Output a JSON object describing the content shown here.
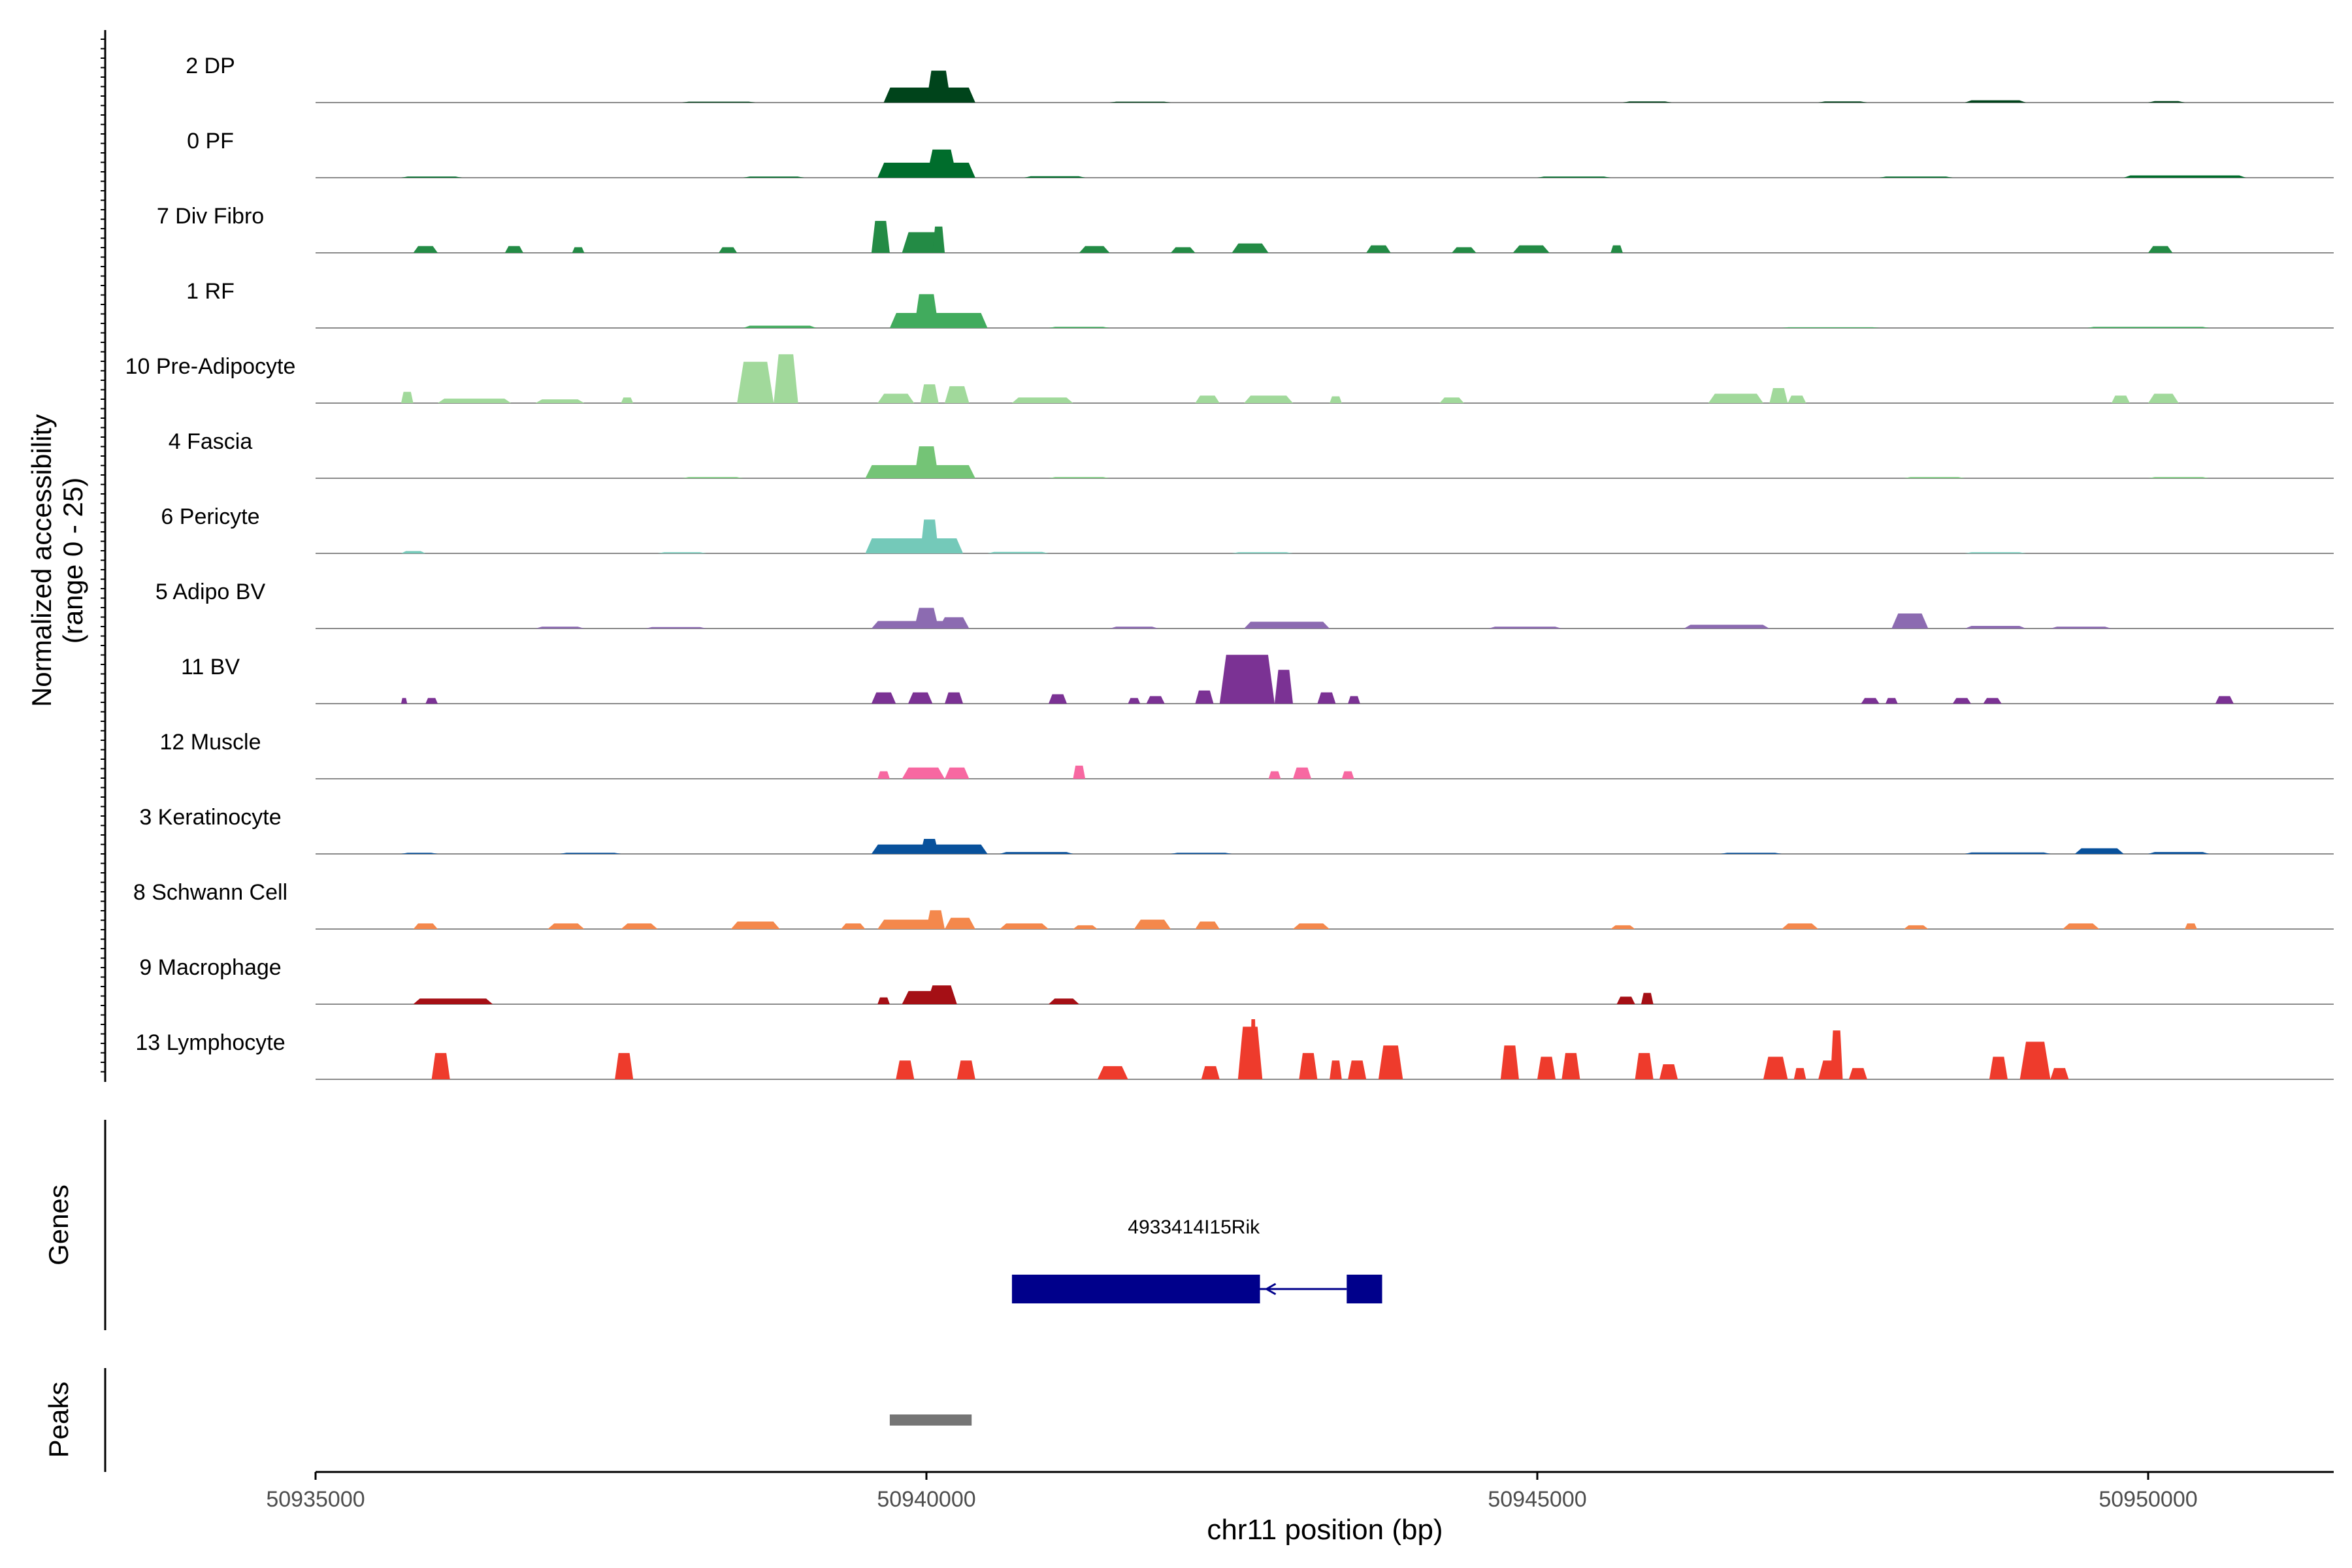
{
  "chart_data": {
    "type": "area",
    "title": "",
    "ylabel_line1": "Normalized accessibility",
    "ylabel_line2": "(range 0 - 25)",
    "xlabel": "chr11 position (bp)",
    "xlim": [
      50935000,
      50951500
    ],
    "ylim": [
      0,
      25
    ],
    "x_ticks": [
      50935000,
      50940000,
      50945000,
      50950000
    ],
    "x_tick_labels": [
      "50935000",
      "50940000",
      "50945000",
      "50950000"
    ],
    "genes_label": "Genes",
    "peaks_label": "Peaks",
    "tracks": [
      {
        "name": "2 DP",
        "color": "#00441b",
        "peaks": [
          [
            50938000,
            50938600,
            0.25
          ],
          [
            50939650,
            50940400,
            4.0
          ],
          [
            50940000,
            50940200,
            8.5
          ],
          [
            50941500,
            50942000,
            0.25
          ],
          [
            50945700,
            50946100,
            0.3
          ],
          [
            50947300,
            50947700,
            0.3
          ],
          [
            50948500,
            50949000,
            0.6
          ],
          [
            50950000,
            50950300,
            0.4
          ]
        ]
      },
      {
        "name": "0 PF",
        "color": "#006d2c",
        "peaks": [
          [
            50935700,
            50936200,
            0.3
          ],
          [
            50938500,
            50939000,
            0.3
          ],
          [
            50939600,
            50940400,
            4.0
          ],
          [
            50940000,
            50940250,
            7.5
          ],
          [
            50940800,
            50941300,
            0.4
          ],
          [
            50945000,
            50945600,
            0.3
          ],
          [
            50947800,
            50948400,
            0.3
          ],
          [
            50949800,
            50950800,
            0.6
          ]
        ]
      },
      {
        "name": "7 Div Fibro",
        "color": "#238b45",
        "peaks": [
          [
            50935800,
            50936000,
            1.8
          ],
          [
            50936550,
            50936700,
            1.8
          ],
          [
            50937100,
            50937200,
            1.5
          ],
          [
            50938300,
            50938450,
            1.5
          ],
          [
            50939550,
            50939700,
            8.5
          ],
          [
            50939800,
            50940150,
            5.5
          ],
          [
            50940050,
            50940150,
            7.0
          ],
          [
            50941250,
            50941500,
            1.8
          ],
          [
            50942000,
            50942200,
            1.5
          ],
          [
            50942500,
            50942800,
            2.5
          ],
          [
            50943600,
            50943800,
            2.0
          ],
          [
            50944300,
            50944500,
            1.5
          ],
          [
            50944800,
            50945100,
            2.0
          ],
          [
            50945600,
            50945700,
            2.0
          ],
          [
            50950000,
            50950200,
            1.8
          ]
        ]
      },
      {
        "name": "1 RF",
        "color": "#41ab5d",
        "peaks": [
          [
            50938500,
            50939100,
            0.6
          ],
          [
            50939700,
            50940500,
            4.0
          ],
          [
            50939900,
            50940100,
            9.0
          ],
          [
            50941000,
            50941500,
            0.3
          ],
          [
            50947000,
            50947800,
            0.2
          ],
          [
            50949500,
            50950500,
            0.3
          ]
        ]
      },
      {
        "name": "10 Pre-Adipocyte",
        "color": "#a1d99b",
        "peaks": [
          [
            50935700,
            50935800,
            3.0
          ],
          [
            50936000,
            50936600,
            1.2
          ],
          [
            50936800,
            50937200,
            1.0
          ],
          [
            50937500,
            50937600,
            1.5
          ],
          [
            50938450,
            50938750,
            11.0
          ],
          [
            50938750,
            50938950,
            13.0
          ],
          [
            50939600,
            50939900,
            2.5
          ],
          [
            50939950,
            50940100,
            5.0
          ],
          [
            50940150,
            50940350,
            4.5
          ],
          [
            50940700,
            50941200,
            1.5
          ],
          [
            50942200,
            50942400,
            2.0
          ],
          [
            50942600,
            50943000,
            2.0
          ],
          [
            50943300,
            50943400,
            1.8
          ],
          [
            50944200,
            50944400,
            1.5
          ],
          [
            50946400,
            50946850,
            2.5
          ],
          [
            50946900,
            50947050,
            4.0
          ],
          [
            50947050,
            50947200,
            2.0
          ],
          [
            50949700,
            50949850,
            2.0
          ],
          [
            50950000,
            50950250,
            2.5
          ]
        ]
      },
      {
        "name": "4 Fascia",
        "color": "#74c476",
        "peaks": [
          [
            50938000,
            50938500,
            0.3
          ],
          [
            50939500,
            50940400,
            3.5
          ],
          [
            50939900,
            50940100,
            8.5
          ],
          [
            50941000,
            50941500,
            0.3
          ],
          [
            50948000,
            50948500,
            0.3
          ],
          [
            50950000,
            50950500,
            0.3
          ]
        ]
      },
      {
        "name": "6 Pericyte",
        "color": "#74c9b9",
        "peaks": [
          [
            50935700,
            50935900,
            0.6
          ],
          [
            50937800,
            50938200,
            0.3
          ],
          [
            50939500,
            50940300,
            4.0
          ],
          [
            50939950,
            50940100,
            9.0
          ],
          [
            50940500,
            50941000,
            0.4
          ],
          [
            50942500,
            50943000,
            0.3
          ],
          [
            50948500,
            50949000,
            0.3
          ]
        ]
      },
      {
        "name": "5 Adipo BV",
        "color": "#8c6bb1",
        "peaks": [
          [
            50936800,
            50937200,
            0.5
          ],
          [
            50937700,
            50938200,
            0.4
          ],
          [
            50939550,
            50940300,
            2.0
          ],
          [
            50939900,
            50940100,
            5.5
          ],
          [
            50940100,
            50940350,
            3.0
          ],
          [
            50941500,
            50941900,
            0.5
          ],
          [
            50942600,
            50943300,
            1.8
          ],
          [
            50944600,
            50945200,
            0.5
          ],
          [
            50946200,
            50946900,
            1.0
          ],
          [
            50947900,
            50948200,
            4.0
          ],
          [
            50948500,
            50949000,
            0.7
          ],
          [
            50949200,
            50949700,
            0.5
          ]
        ]
      },
      {
        "name": "11 BV",
        "color": "#7b3294",
        "peaks": [
          [
            50935700,
            50935750,
            1.5
          ],
          [
            50935900,
            50936000,
            1.5
          ],
          [
            50939550,
            50939750,
            3.0
          ],
          [
            50939850,
            50940050,
            3.0
          ],
          [
            50940150,
            50940300,
            3.0
          ],
          [
            50941000,
            50941150,
            2.5
          ],
          [
            50941650,
            50941750,
            1.5
          ],
          [
            50941800,
            50941950,
            2.0
          ],
          [
            50942200,
            50942350,
            3.5
          ],
          [
            50942400,
            50942850,
            13.0
          ],
          [
            50942850,
            50943000,
            9.0
          ],
          [
            50943200,
            50943350,
            3.0
          ],
          [
            50943450,
            50943550,
            2.0
          ],
          [
            50947650,
            50947800,
            1.5
          ],
          [
            50947850,
            50947950,
            1.5
          ],
          [
            50948400,
            50948550,
            1.5
          ],
          [
            50948650,
            50948800,
            1.5
          ],
          [
            50950550,
            50950700,
            2.0
          ]
        ]
      },
      {
        "name": "12 Muscle",
        "color": "#f768a1",
        "peaks": [
          [
            50939600,
            50939700,
            2.0
          ],
          [
            50939800,
            50940150,
            3.0
          ],
          [
            50940150,
            50940350,
            3.0
          ],
          [
            50941200,
            50941300,
            3.5
          ],
          [
            50942800,
            50942900,
            2.0
          ],
          [
            50943000,
            50943150,
            3.0
          ],
          [
            50943400,
            50943500,
            2.0
          ]
        ]
      },
      {
        "name": "3 Keratinocyte",
        "color": "#08519c",
        "peaks": [
          [
            50935700,
            50936000,
            0.3
          ],
          [
            50937000,
            50937500,
            0.3
          ],
          [
            50939550,
            50940500,
            2.5
          ],
          [
            50939950,
            50940100,
            4.0
          ],
          [
            50940600,
            50941200,
            0.5
          ],
          [
            50942000,
            50942500,
            0.3
          ],
          [
            50946500,
            50947000,
            0.3
          ],
          [
            50948500,
            50949200,
            0.4
          ],
          [
            50949400,
            50949800,
            1.5
          ],
          [
            50950000,
            50950500,
            0.5
          ]
        ]
      },
      {
        "name": "8 Schwann Cell",
        "color": "#f4884c",
        "peaks": [
          [
            50935800,
            50936000,
            1.5
          ],
          [
            50936900,
            50937200,
            1.5
          ],
          [
            50937500,
            50937800,
            1.5
          ],
          [
            50938400,
            50938800,
            2.0
          ],
          [
            50939300,
            50939500,
            1.5
          ],
          [
            50939600,
            50940150,
            2.5
          ],
          [
            50940000,
            50940150,
            5.0
          ],
          [
            50940150,
            50940400,
            3.0
          ],
          [
            50940600,
            50941000,
            1.5
          ],
          [
            50941200,
            50941400,
            1.0
          ],
          [
            50941700,
            50942000,
            2.5
          ],
          [
            50942200,
            50942400,
            2.0
          ],
          [
            50943000,
            50943300,
            1.5
          ],
          [
            50945600,
            50945800,
            1.0
          ],
          [
            50947000,
            50947300,
            1.5
          ],
          [
            50948000,
            50948200,
            1.0
          ],
          [
            50949300,
            50949600,
            1.5
          ],
          [
            50950300,
            50950400,
            1.5
          ]
        ]
      },
      {
        "name": "9 Macrophage",
        "color": "#a50f15",
        "peaks": [
          [
            50935800,
            50936450,
            1.5
          ],
          [
            50939600,
            50939700,
            1.8
          ],
          [
            50939800,
            50940200,
            3.5
          ],
          [
            50940000,
            50940250,
            5.0
          ],
          [
            50941000,
            50941250,
            1.5
          ],
          [
            50945650,
            50945800,
            2.0
          ],
          [
            50945850,
            50945950,
            3.0
          ]
        ]
      },
      {
        "name": "13 Lymphocyte",
        "color": "#ee3b2c",
        "peaks": [
          [
            50935950,
            50936100,
            7.0
          ],
          [
            50937450,
            50937600,
            7.0
          ],
          [
            50939750,
            50939900,
            5.0
          ],
          [
            50940250,
            50940400,
            5.0
          ],
          [
            50941400,
            50941650,
            3.5
          ],
          [
            50942250,
            50942400,
            3.5
          ],
          [
            50942550,
            50942750,
            14.0
          ],
          [
            50942650,
            50942700,
            16.0
          ],
          [
            50943050,
            50943200,
            7.0
          ],
          [
            50943300,
            50943400,
            5.0
          ],
          [
            50943450,
            50943600,
            5.0
          ],
          [
            50943700,
            50943900,
            9.0
          ],
          [
            50944700,
            50944850,
            9.0
          ],
          [
            50945000,
            50945150,
            6.0
          ],
          [
            50945200,
            50945350,
            7.0
          ],
          [
            50945800,
            50945950,
            7.0
          ],
          [
            50946000,
            50946150,
            4.0
          ],
          [
            50946850,
            50947050,
            6.0
          ],
          [
            50947100,
            50947200,
            3.0
          ],
          [
            50947300,
            50947500,
            5.0
          ],
          [
            50947400,
            50947500,
            13.0
          ],
          [
            50947550,
            50947700,
            3.0
          ],
          [
            50948700,
            50948850,
            6.0
          ],
          [
            50948950,
            50949200,
            10.0
          ],
          [
            50949200,
            50949350,
            3.0
          ]
        ]
      }
    ],
    "gene": {
      "name": "4933414I15Rik",
      "color": "#00008b",
      "exons": [
        [
          50940700,
          50942730
        ],
        [
          50943440,
          50943730
        ]
      ],
      "intron": [
        50942730,
        50943440
      ]
    },
    "peak_regions": [
      {
        "start": 50939700,
        "end": 50940370,
        "color": "#757575"
      }
    ]
  }
}
